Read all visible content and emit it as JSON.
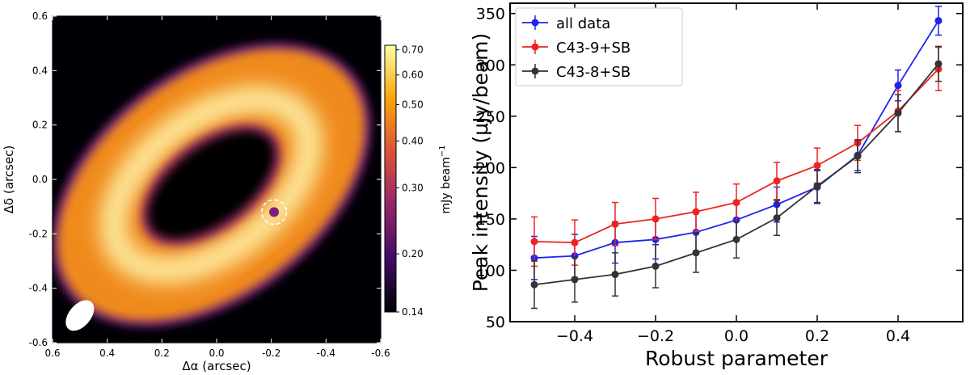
{
  "chart_data": [
    {
      "type": "heatmap",
      "title": "",
      "xlabel": "Δα (arcsec)",
      "ylabel": "Δδ (arcsec)",
      "xlim": [
        0.6,
        -0.6
      ],
      "ylim": [
        -0.6,
        0.6
      ],
      "x_ticks": [
        0.6,
        0.4,
        0.2,
        0.0,
        -0.2,
        -0.4,
        -0.6
      ],
      "x_tick_labels": [
        "0.6",
        "0.4",
        "0.2",
        "0.0",
        "-0.2",
        "-0.4",
        "-0.6"
      ],
      "y_ticks": [
        0.6,
        0.4,
        0.2,
        0.0,
        -0.2,
        -0.4,
        -0.6
      ],
      "y_tick_labels": [
        "0.6",
        "0.4",
        "0.2",
        "0.0",
        "-0.2",
        "-0.4",
        "-0.6"
      ],
      "ring": {
        "center": [
          0.02,
          -0.02
        ],
        "position_angle_deg": -37,
        "outer_semi_axes": [
          0.66,
          0.42
        ],
        "inner_semi_axes": [
          0.27,
          0.14
        ],
        "peak_semi_axes": [
          0.41,
          0.24
        ]
      },
      "compact_source": {
        "x": -0.21,
        "y": -0.12,
        "circle_radius": 0.045
      },
      "beam": {
        "x": 0.5,
        "y": -0.5,
        "major": 0.065,
        "minor": 0.04,
        "position_angle_deg": 40
      },
      "colorbar": {
        "label": "mJy beam",
        "label_exponent": "−1",
        "ticks": [
          0.14,
          0.2,
          0.3,
          0.4,
          0.5,
          0.6,
          0.7
        ],
        "tick_labels": [
          "0.14",
          "0.20",
          "0.30",
          "0.40",
          "0.50",
          "0.60",
          "0.70"
        ],
        "min": 0.14,
        "max": 0.72,
        "scale": "log",
        "colormap": [
          "#000004",
          "#420a68",
          "#932667",
          "#dd513a",
          "#fca50a",
          "#fcffa4"
        ]
      }
    },
    {
      "type": "line",
      "title": "",
      "xlabel": "Robust parameter",
      "ylabel": "Peak intensity (μJy/beam)",
      "xlim": [
        -0.56,
        0.56
      ],
      "ylim": [
        50,
        360
      ],
      "x_ticks": [
        -0.4,
        -0.2,
        0.0,
        0.2,
        0.4
      ],
      "x_tick_labels": [
        "−0.4",
        "−0.2",
        "0.0",
        "0.2",
        "0.4"
      ],
      "y_ticks": [
        50,
        100,
        150,
        200,
        250,
        300,
        350
      ],
      "y_tick_labels": [
        "50",
        "100",
        "150",
        "200",
        "250",
        "300",
        "350"
      ],
      "x": [
        -0.5,
        -0.4,
        -0.3,
        -0.2,
        -0.1,
        0.0,
        0.1,
        0.2,
        0.3,
        0.4,
        0.5
      ],
      "legend_position": "top-left",
      "series": [
        {
          "name": "all data",
          "color": "#2222ee",
          "values": [
            112,
            114,
            127,
            130,
            137,
            149,
            164,
            181,
            212,
            280,
            343
          ],
          "errors": [
            21,
            21,
            20,
            19,
            19,
            18,
            17,
            16,
            15,
            15,
            14
          ]
        },
        {
          "name": "C43-9+SB",
          "color": "#ee2222",
          "values": [
            128,
            127,
            145,
            150,
            157,
            166,
            187,
            202,
            224,
            255,
            296
          ],
          "errors": [
            24,
            22,
            21,
            20,
            19,
            18,
            18,
            17,
            17,
            20,
            21
          ]
        },
        {
          "name": "C43-8+SB",
          "color": "#333333",
          "values": [
            86,
            91,
            96,
            104,
            117,
            130,
            151,
            182,
            211,
            253,
            301
          ],
          "errors": [
            23,
            22,
            21,
            21,
            19,
            18,
            17,
            16,
            16,
            18,
            17
          ]
        }
      ]
    }
  ]
}
